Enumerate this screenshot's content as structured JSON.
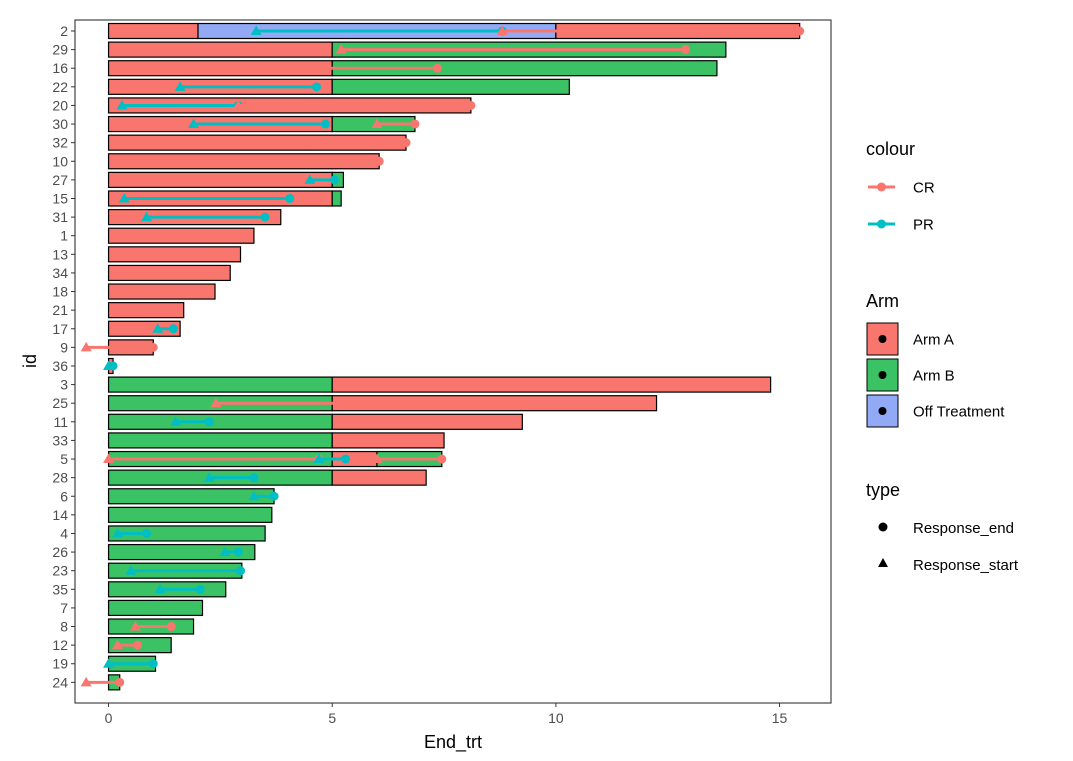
{
  "chart_data": {
    "type": "bar",
    "orientation": "horizontal",
    "xlabel": "End_trt",
    "ylabel": "id",
    "xlim": [
      -0.75,
      16.15
    ],
    "xticks": [
      0,
      5,
      10,
      15
    ],
    "grid": false,
    "legend_placement": "right",
    "arm_colors": {
      "Arm A": "#F8766D",
      "Arm B": "#3BC264",
      "Off Treatment": "#92A9F5"
    },
    "response_colors": {
      "CR": "#F8766D",
      "PR": "#00BFC4"
    },
    "rows": [
      {
        "id": "2",
        "segments": [
          {
            "arm": "Arm A",
            "from": 0,
            "to": 2
          },
          {
            "arm": "Off Treatment",
            "from": 2,
            "to": 10
          },
          {
            "arm": "Arm A",
            "from": 10,
            "to": 15.45
          }
        ],
        "responses": [
          {
            "type": "PR",
            "start": 3.3,
            "end": 8.8
          },
          {
            "type": "CR",
            "start": 8.8,
            "end": 15.45
          }
        ]
      },
      {
        "id": "29",
        "segments": [
          {
            "arm": "Arm A",
            "from": 0,
            "to": 5
          },
          {
            "arm": "Arm B",
            "from": 5,
            "to": 13.8
          }
        ],
        "responses": [
          {
            "type": "CR",
            "start": 5.2,
            "end": 12.9
          }
        ]
      },
      {
        "id": "16",
        "segments": [
          {
            "arm": "Arm A",
            "from": 0,
            "to": 5
          },
          {
            "arm": "Arm B",
            "from": 5,
            "to": 13.6
          }
        ],
        "responses": [
          {
            "type": "CR",
            "start": 4.5,
            "end": 7.35
          }
        ]
      },
      {
        "id": "22",
        "segments": [
          {
            "arm": "Arm A",
            "from": 0,
            "to": 5
          },
          {
            "arm": "Arm B",
            "from": 5,
            "to": 10.3
          }
        ],
        "responses": [
          {
            "type": "PR",
            "start": 1.6,
            "end": 4.65
          }
        ]
      },
      {
        "id": "20",
        "segments": [
          {
            "arm": "Arm A",
            "from": 0,
            "to": 8.1
          }
        ],
        "responses": [
          {
            "type": "PR",
            "start": 0.3,
            "end": 2.9
          },
          {
            "type": "CR",
            "start": 2.9,
            "end": 8.1
          }
        ]
      },
      {
        "id": "30",
        "segments": [
          {
            "arm": "Arm A",
            "from": 0,
            "to": 5
          },
          {
            "arm": "Arm B",
            "from": 5,
            "to": 6.85
          }
        ],
        "responses": [
          {
            "type": "PR",
            "start": 1.9,
            "end": 4.85
          },
          {
            "type": "CR",
            "start": 6.0,
            "end": 6.85
          }
        ]
      },
      {
        "id": "32",
        "segments": [
          {
            "arm": "Arm A",
            "from": 0,
            "to": 6.65
          }
        ],
        "responses": [
          {
            "type": "CR",
            "start": 4.5,
            "end": 6.65
          }
        ]
      },
      {
        "id": "10",
        "segments": [
          {
            "arm": "Arm A",
            "from": 0,
            "to": 6.05
          }
        ],
        "responses": [
          {
            "type": "CR",
            "start": 3.7,
            "end": 6.05
          }
        ]
      },
      {
        "id": "27",
        "segments": [
          {
            "arm": "Arm A",
            "from": 0,
            "to": 5
          },
          {
            "arm": "Arm B",
            "from": 5,
            "to": 5.25
          }
        ],
        "responses": [
          {
            "type": "PR",
            "start": 4.5,
            "end": 5.05
          }
        ]
      },
      {
        "id": "15",
        "segments": [
          {
            "arm": "Arm A",
            "from": 0,
            "to": 5
          },
          {
            "arm": "Arm B",
            "from": 5,
            "to": 5.2
          }
        ],
        "responses": [
          {
            "type": "PR",
            "start": 0.35,
            "end": 4.05
          }
        ]
      },
      {
        "id": "31",
        "segments": [
          {
            "arm": "Arm A",
            "from": 0,
            "to": 3.85
          }
        ],
        "responses": [
          {
            "type": "PR",
            "start": 0.85,
            "end": 3.5
          }
        ]
      },
      {
        "id": "1",
        "segments": [
          {
            "arm": "Arm A",
            "from": 0,
            "to": 3.25
          }
        ],
        "responses": []
      },
      {
        "id": "13",
        "segments": [
          {
            "arm": "Arm A",
            "from": 0,
            "to": 2.95
          }
        ],
        "responses": [
          {
            "type": "CR",
            "start": 2.1,
            "end": 2.6
          }
        ]
      },
      {
        "id": "34",
        "segments": [
          {
            "arm": "Arm A",
            "from": 0,
            "to": 2.72
          }
        ],
        "responses": [
          {
            "type": "CR",
            "start": 0.4,
            "end": 2.3
          }
        ]
      },
      {
        "id": "18",
        "segments": [
          {
            "arm": "Arm A",
            "from": 0,
            "to": 2.38
          }
        ],
        "responses": [
          {
            "type": "CR",
            "start": 0.55,
            "end": 1.3
          }
        ]
      },
      {
        "id": "21",
        "segments": [
          {
            "arm": "Arm A",
            "from": 0,
            "to": 1.68
          }
        ],
        "responses": [
          {
            "type": "CR",
            "start": 0.8,
            "end": 0.9
          }
        ]
      },
      {
        "id": "17",
        "segments": [
          {
            "arm": "Arm A",
            "from": 0,
            "to": 1.6
          }
        ],
        "responses": [
          {
            "type": "PR",
            "start": 1.1,
            "end": 1.45
          }
        ]
      },
      {
        "id": "9",
        "segments": [
          {
            "arm": "Arm A",
            "from": 0,
            "to": 1.0
          }
        ],
        "responses": [
          {
            "type": "CR",
            "start": -0.5,
            "end": 1.0
          }
        ]
      },
      {
        "id": "36",
        "segments": [
          {
            "arm": "Arm A",
            "from": 0,
            "to": 0.1
          }
        ],
        "responses": [
          {
            "type": "PR",
            "start": 0.0,
            "end": 0.1
          }
        ]
      },
      {
        "id": "3",
        "segments": [
          {
            "arm": "Arm B",
            "from": 0,
            "to": 5
          },
          {
            "arm": "Arm A",
            "from": 5,
            "to": 14.8
          }
        ],
        "responses": []
      },
      {
        "id": "25",
        "segments": [
          {
            "arm": "Arm B",
            "from": 0,
            "to": 5
          },
          {
            "arm": "Arm A",
            "from": 5,
            "to": 12.25
          }
        ],
        "responses": [
          {
            "type": "CR",
            "start": 2.4,
            "end": 11.1
          }
        ]
      },
      {
        "id": "11",
        "segments": [
          {
            "arm": "Arm B",
            "from": 0,
            "to": 5
          },
          {
            "arm": "Arm A",
            "from": 5,
            "to": 9.25
          }
        ],
        "responses": [
          {
            "type": "PR",
            "start": 1.5,
            "end": 2.25
          }
        ]
      },
      {
        "id": "33",
        "segments": [
          {
            "arm": "Arm B",
            "from": 0,
            "to": 5
          },
          {
            "arm": "Arm A",
            "from": 5,
            "to": 7.5
          }
        ],
        "responses": []
      },
      {
        "id": "5",
        "segments": [
          {
            "arm": "Arm B",
            "from": 0,
            "to": 5
          },
          {
            "arm": "Arm A",
            "from": 5,
            "to": 6.0
          },
          {
            "arm": "Arm B",
            "from": 6.0,
            "to": 7.45
          }
        ],
        "responses": [
          {
            "type": "CR",
            "start": 0.0,
            "end": 4.7
          },
          {
            "type": "PR",
            "start": 4.7,
            "end": 5.3
          },
          {
            "type": "CR",
            "start": 6.0,
            "end": 7.45
          }
        ]
      },
      {
        "id": "28",
        "segments": [
          {
            "arm": "Arm B",
            "from": 0,
            "to": 5
          },
          {
            "arm": "Arm A",
            "from": 5,
            "to": 7.1
          }
        ],
        "responses": [
          {
            "type": "PR",
            "start": 2.25,
            "end": 3.25
          }
        ]
      },
      {
        "id": "6",
        "segments": [
          {
            "arm": "Arm B",
            "from": 0,
            "to": 3.7
          }
        ],
        "responses": [
          {
            "type": "PR",
            "start": 3.25,
            "end": 3.7
          }
        ]
      },
      {
        "id": "14",
        "segments": [
          {
            "arm": "Arm B",
            "from": 0,
            "to": 3.65
          }
        ],
        "responses": []
      },
      {
        "id": "4",
        "segments": [
          {
            "arm": "Arm B",
            "from": 0,
            "to": 3.5
          }
        ],
        "responses": [
          {
            "type": "PR",
            "start": 0.2,
            "end": 0.85
          }
        ]
      },
      {
        "id": "26",
        "segments": [
          {
            "arm": "Arm B",
            "from": 0,
            "to": 3.27
          }
        ],
        "responses": [
          {
            "type": "PR",
            "start": 2.6,
            "end": 2.9
          }
        ]
      },
      {
        "id": "23",
        "segments": [
          {
            "arm": "Arm B",
            "from": 0,
            "to": 2.98
          }
        ],
        "responses": [
          {
            "type": "PR",
            "start": 0.5,
            "end": 2.95
          }
        ]
      },
      {
        "id": "35",
        "segments": [
          {
            "arm": "Arm B",
            "from": 0,
            "to": 2.62
          }
        ],
        "responses": [
          {
            "type": "PR",
            "start": 1.15,
            "end": 2.05
          }
        ]
      },
      {
        "id": "7",
        "segments": [
          {
            "arm": "Arm B",
            "from": 0,
            "to": 2.1
          }
        ],
        "responses": []
      },
      {
        "id": "8",
        "segments": [
          {
            "arm": "Arm B",
            "from": 0,
            "to": 1.9
          }
        ],
        "responses": [
          {
            "type": "CR",
            "start": 0.6,
            "end": 1.4
          }
        ]
      },
      {
        "id": "12",
        "segments": [
          {
            "arm": "Arm B",
            "from": 0,
            "to": 1.4
          }
        ],
        "responses": [
          {
            "type": "CR",
            "start": 0.2,
            "end": 0.65
          }
        ]
      },
      {
        "id": "19",
        "segments": [
          {
            "arm": "Arm B",
            "from": 0,
            "to": 1.05
          }
        ],
        "responses": [
          {
            "type": "PR",
            "start": 0.0,
            "end": 1.0
          }
        ]
      },
      {
        "id": "24",
        "segments": [
          {
            "arm": "Arm B",
            "from": 0,
            "to": 0.25
          }
        ],
        "responses": [
          {
            "type": "CR",
            "start": -0.5,
            "end": 0.25
          }
        ]
      }
    ]
  },
  "legend": {
    "colour": {
      "title": "colour",
      "items": [
        {
          "label": "CR",
          "color": "#F8766D"
        },
        {
          "label": "PR",
          "color": "#00BFC4"
        }
      ]
    },
    "arm": {
      "title": "Arm",
      "items": [
        {
          "label": "Arm A",
          "color": "#F8766D"
        },
        {
          "label": "Arm B",
          "color": "#3BC264"
        },
        {
          "label": "Off Treatment",
          "color": "#92A9F5"
        }
      ]
    },
    "type": {
      "title": "type",
      "items": [
        {
          "label": "Response_end",
          "shape": "circle"
        },
        {
          "label": "Response_start",
          "shape": "triangle"
        }
      ]
    }
  }
}
